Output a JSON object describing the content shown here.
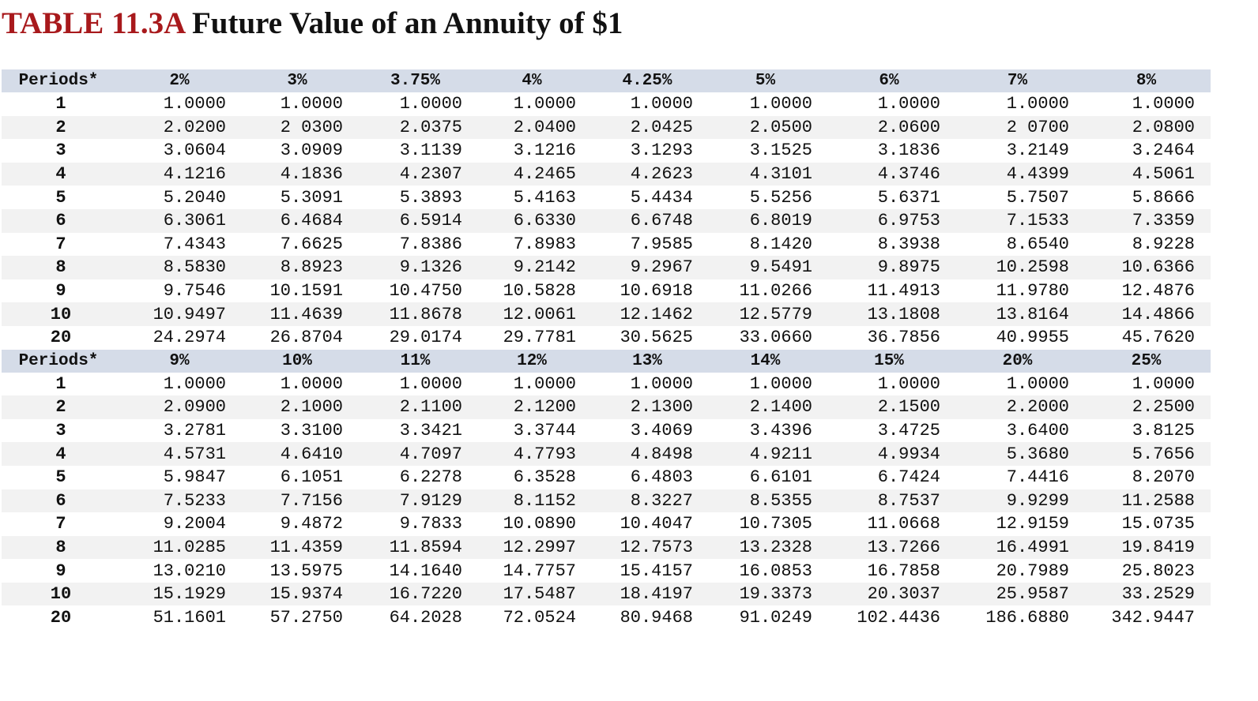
{
  "title": {
    "label": "TABLE 11.3A",
    "text": "Future Value of an Annuity of $1"
  },
  "tables": [
    {
      "periods_header": "Periods*",
      "rates": [
        "2%",
        "3%",
        "3.75%",
        "4%",
        "4.25%",
        "5%",
        "6%",
        "7%",
        "8%"
      ],
      "rows": [
        {
          "period": "1",
          "values": [
            "1.0000",
            "1.0000",
            "1.0000",
            "1.0000",
            "1.0000",
            "1.0000",
            "1.0000",
            "1.0000",
            "1.0000"
          ]
        },
        {
          "period": "2",
          "values": [
            "2.0200",
            "2 0300",
            "2.0375",
            "2.0400",
            "2.0425",
            "2.0500",
            "2.0600",
            "2 0700",
            "2.0800"
          ]
        },
        {
          "period": "3",
          "values": [
            "3.0604",
            "3.0909",
            "3.1139",
            "3.1216",
            "3.1293",
            "3.1525",
            "3.1836",
            "3.2149",
            "3.2464"
          ]
        },
        {
          "period": "4",
          "values": [
            "4.1216",
            "4.1836",
            "4.2307",
            "4.2465",
            "4.2623",
            "4.3101",
            "4.3746",
            "4.4399",
            "4.5061"
          ]
        },
        {
          "period": "5",
          "values": [
            "5.2040",
            "5.3091",
            "5.3893",
            "5.4163",
            "5.4434",
            "5.5256",
            "5.6371",
            "5.7507",
            "5.8666"
          ]
        },
        {
          "period": "6",
          "values": [
            "6.3061",
            "6.4684",
            "6.5914",
            "6.6330",
            "6.6748",
            "6.8019",
            "6.9753",
            "7.1533",
            "7.3359"
          ]
        },
        {
          "period": "7",
          "values": [
            "7.4343",
            "7.6625",
            "7.8386",
            "7.8983",
            "7.9585",
            "8.1420",
            "8.3938",
            "8.6540",
            "8.9228"
          ]
        },
        {
          "period": "8",
          "values": [
            "8.5830",
            "8.8923",
            "9.1326",
            "9.2142",
            "9.2967",
            "9.5491",
            "9.8975",
            "10.2598",
            "10.6366"
          ]
        },
        {
          "period": "9",
          "values": [
            "9.7546",
            "10.1591",
            "10.4750",
            "10.5828",
            "10.6918",
            "11.0266",
            "11.4913",
            "11.9780",
            "12.4876"
          ]
        },
        {
          "period": "10",
          "values": [
            "10.9497",
            "11.4639",
            "11.8678",
            "12.0061",
            "12.1462",
            "12.5779",
            "13.1808",
            "13.8164",
            "14.4866"
          ]
        },
        {
          "period": "20",
          "values": [
            "24.2974",
            "26.8704",
            "29.0174",
            "29.7781",
            "30.5625",
            "33.0660",
            "36.7856",
            "40.9955",
            "45.7620"
          ]
        }
      ]
    },
    {
      "periods_header": "Periods*",
      "rates": [
        "9%",
        "10%",
        "11%",
        "12%",
        "13%",
        "14%",
        "15%",
        "20%",
        "25%"
      ],
      "rows": [
        {
          "period": "1",
          "values": [
            "1.0000",
            "1.0000",
            "1.0000",
            "1.0000",
            "1.0000",
            "1.0000",
            "1.0000",
            "1.0000",
            "1.0000"
          ]
        },
        {
          "period": "2",
          "values": [
            "2.0900",
            "2.1000",
            "2.1100",
            "2.1200",
            "2.1300",
            "2.1400",
            "2.1500",
            "2.2000",
            "2.2500"
          ]
        },
        {
          "period": "3",
          "values": [
            "3.2781",
            "3.3100",
            "3.3421",
            "3.3744",
            "3.4069",
            "3.4396",
            "3.4725",
            "3.6400",
            "3.8125"
          ]
        },
        {
          "period": "4",
          "values": [
            "4.5731",
            "4.6410",
            "4.7097",
            "4.7793",
            "4.8498",
            "4.9211",
            "4.9934",
            "5.3680",
            "5.7656"
          ]
        },
        {
          "period": "5",
          "values": [
            "5.9847",
            "6.1051",
            "6.2278",
            "6.3528",
            "6.4803",
            "6.6101",
            "6.7424",
            "7.4416",
            "8.2070"
          ]
        },
        {
          "period": "6",
          "values": [
            "7.5233",
            "7.7156",
            "7.9129",
            "8.1152",
            "8.3227",
            "8.5355",
            "8.7537",
            "9.9299",
            "11.2588"
          ]
        },
        {
          "period": "7",
          "values": [
            "9.2004",
            "9.4872",
            "9.7833",
            "10.0890",
            "10.4047",
            "10.7305",
            "11.0668",
            "12.9159",
            "15.0735"
          ]
        },
        {
          "period": "8",
          "values": [
            "11.0285",
            "11.4359",
            "11.8594",
            "12.2997",
            "12.7573",
            "13.2328",
            "13.7266",
            "16.4991",
            "19.8419"
          ]
        },
        {
          "period": "9",
          "values": [
            "13.0210",
            "13.5975",
            "14.1640",
            "14.7757",
            "15.4157",
            "16.0853",
            "16.7858",
            "20.7989",
            "25.8023"
          ]
        },
        {
          "period": "10",
          "values": [
            "15.1929",
            "15.9374",
            "16.7220",
            "17.5487",
            "18.4197",
            "19.3373",
            "20.3037",
            "25.9587",
            "33.2529"
          ]
        },
        {
          "period": "20",
          "values": [
            "51.1601",
            "57.2750",
            "64.2028",
            "72.0524",
            "80.9468",
            "91.0249",
            "102.4436",
            "186.6880",
            "342.9447"
          ]
        }
      ]
    }
  ]
}
